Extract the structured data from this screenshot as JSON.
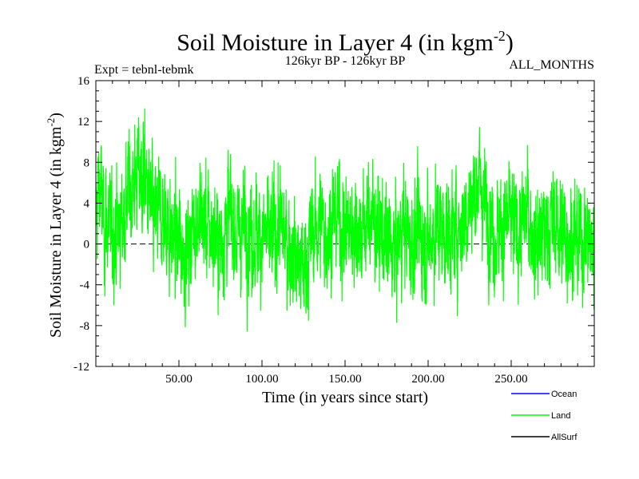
{
  "chart_data": {
    "type": "line",
    "title_main": "Soil Moisture in Layer 4 (in kgm",
    "title_sup": "-2",
    "title_close": ")",
    "subtitle_left": "Expt = tebnl-tebmk",
    "subtitle_center": "126kyr BP - 126kyr BP",
    "subtitle_right": "ALL_MONTHS",
    "xlabel": "Time (in years since start)",
    "ylabel_main": "Soil Moisture in Layer 4 (in kgm",
    "ylabel_sup": "-2",
    "ylabel_close": ")",
    "xlim": [
      0,
      300
    ],
    "ylim": [
      -12,
      16
    ],
    "x_ticks": [
      50,
      100,
      150,
      200,
      250
    ],
    "x_tick_labels": [
      "50.00",
      "100.00",
      "150.00",
      "200.00",
      "250.00"
    ],
    "y_ticks": [
      -12,
      -8,
      -4,
      0,
      4,
      8,
      12,
      16
    ],
    "y_tick_labels": [
      "-12",
      "-8",
      "-4",
      "0",
      "4",
      "8",
      "12",
      "16"
    ],
    "zero_line": true,
    "legend_position": "bottom-right",
    "legend": [
      {
        "name": "Ocean",
        "color": "#0000ff"
      },
      {
        "name": "Land",
        "color": "#00ff00"
      },
      {
        "name": "AllSurf",
        "color": "#000000"
      }
    ],
    "series": [
      {
        "name": "Land",
        "color": "#00ff00",
        "anchors_x": [
          0,
          2,
          5,
          10,
          15,
          20,
          25,
          30,
          35,
          40,
          45,
          50,
          55,
          60,
          65,
          70,
          75,
          80,
          85,
          90,
          95,
          100,
          105,
          110,
          115,
          120,
          125,
          130,
          135,
          140,
          145,
          150,
          155,
          160,
          165,
          170,
          175,
          180,
          185,
          190,
          195,
          200,
          205,
          210,
          215,
          220,
          225,
          230,
          235,
          240,
          245,
          250,
          255,
          260,
          265,
          270,
          275,
          280,
          285,
          290,
          295,
          300
        ],
        "anchors_y": [
          2,
          6,
          2,
          1,
          2,
          5,
          7,
          6,
          2,
          3,
          1,
          0,
          -1,
          3,
          2,
          1,
          0,
          3,
          1,
          2,
          1,
          1,
          0,
          2,
          0,
          -1,
          -3,
          1,
          2,
          1,
          3,
          1,
          2,
          1,
          3,
          1,
          0,
          -1,
          2,
          0,
          1,
          0,
          2,
          1,
          1,
          2,
          4,
          6,
          4,
          1,
          2,
          2,
          1,
          3,
          0,
          1,
          2,
          1,
          1,
          0,
          1,
          -1
        ],
        "min_y": -9,
        "max_y": 13.3,
        "samples": 3600
      }
    ]
  }
}
